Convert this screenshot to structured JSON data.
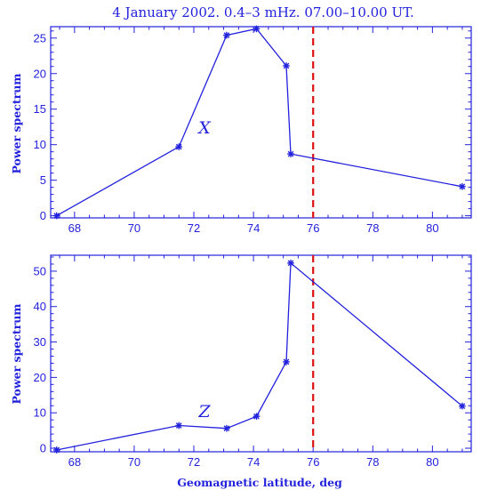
{
  "title": "4 January 2002. 0.4–3 mHz. 07.00–10.00 UT.",
  "colors": {
    "axis": "#2222dd",
    "line": "#2222dd",
    "marker": "#2222dd",
    "reference_line": "#dd1111"
  },
  "chart_data": [
    {
      "type": "line",
      "panel_label": "X",
      "ylabel": "Power spectrum",
      "xlabel": "",
      "xlim": [
        67.2,
        81.3
      ],
      "ylim": [
        -0.3,
        26.6
      ],
      "xticks": [
        68,
        70,
        72,
        74,
        76,
        78,
        80
      ],
      "yticks": [
        0,
        5,
        10,
        15,
        20,
        25
      ],
      "reference_x": 76.0,
      "x": [
        67.4,
        71.5,
        73.1,
        74.1,
        75.1,
        75.25,
        81.0
      ],
      "y": [
        0.0,
        9.7,
        25.4,
        26.3,
        21.1,
        8.7,
        4.1
      ]
    },
    {
      "type": "line",
      "panel_label": "Z",
      "ylabel": "Power spectrum",
      "xlabel": "Geomagnetic latitude, deg",
      "xlim": [
        67.2,
        81.3
      ],
      "ylim": [
        -1,
        54.5
      ],
      "xticks": [
        68,
        70,
        72,
        74,
        76,
        78,
        80
      ],
      "yticks": [
        0,
        10,
        20,
        30,
        40,
        50
      ],
      "reference_x": 76.0,
      "x": [
        67.4,
        71.5,
        73.1,
        74.1,
        75.1,
        75.25,
        81.0
      ],
      "y": [
        -0.5,
        6.4,
        5.6,
        9.0,
        24.4,
        52.3,
        11.9
      ]
    }
  ]
}
